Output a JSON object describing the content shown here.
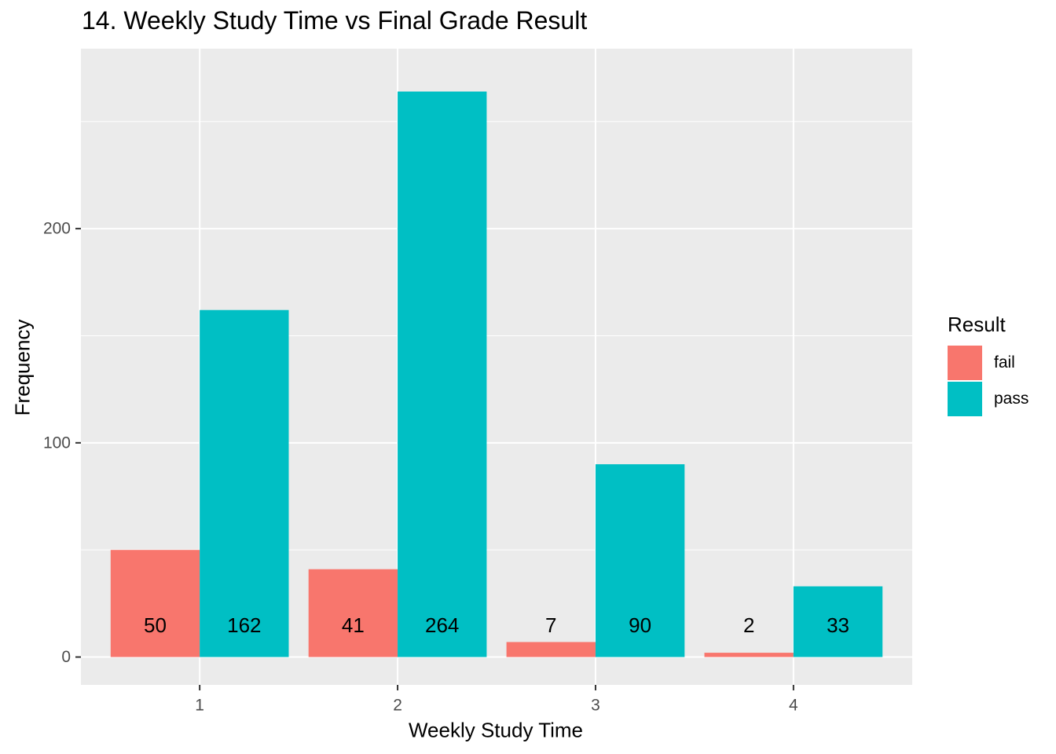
{
  "chart_data": {
    "type": "bar",
    "title": "14. Weekly Study Time vs Final Grade Result",
    "xlabel": "Weekly Study Time",
    "ylabel": "Frequency",
    "categories": [
      "1",
      "2",
      "3",
      "4"
    ],
    "series": [
      {
        "name": "fail",
        "values": [
          50,
          41,
          7,
          2
        ],
        "color": "#F8766D"
      },
      {
        "name": "pass",
        "values": [
          162,
          264,
          90,
          33
        ],
        "color": "#00BFC4"
      }
    ],
    "ylim": [
      -13,
      284
    ],
    "yticks": [
      0,
      100,
      200
    ],
    "legend": {
      "title": "Result",
      "position": "right"
    },
    "grid": true,
    "data_labels": true
  }
}
